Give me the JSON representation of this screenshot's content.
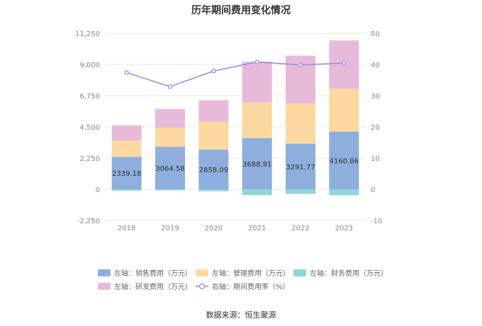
{
  "chart_data": {
    "type": "bar",
    "title": "历年期间费用变化情况",
    "categories": [
      "2018",
      "2019",
      "2020",
      "2021",
      "2022",
      "2023"
    ],
    "left_axis": {
      "ticks": [
        "11,250",
        "9,000",
        "6,750",
        "4,500",
        "2,250",
        "0",
        "-2,250"
      ],
      "ylim": [
        -2250,
        11250
      ]
    },
    "right_axis": {
      "ticks": [
        "50",
        "40",
        "30",
        "20",
        "10",
        "0",
        "-10"
      ],
      "ylim": [
        -10,
        50
      ]
    },
    "series": [
      {
        "name": "左轴：销售费用（万元）",
        "type": "bar",
        "stack": "pos",
        "color": "#8eaedd",
        "values": [
          2339.18,
          3064.58,
          2858.09,
          3688.91,
          3291.77,
          4160.86
        ],
        "labels": true
      },
      {
        "name": "左轴：管理费用（万元）",
        "type": "bar",
        "stack": "pos",
        "color": "#fcd9a0",
        "values": [
          1170,
          1380,
          2010,
          2560,
          2900,
          3080
        ]
      },
      {
        "name": "左轴：财务费用（万元）",
        "type": "bar",
        "stack": "neg",
        "color": "#8ed6d8",
        "values": [
          -110,
          -80,
          -150,
          -420,
          -330,
          -430
        ]
      },
      {
        "name": "左轴：研发费用（万元）",
        "type": "bar",
        "stack": "pos",
        "color": "#e8bada",
        "values": [
          1100,
          1350,
          1550,
          2950,
          3450,
          3490
        ]
      },
      {
        "name": "右轴：期间费用率（%）",
        "type": "line",
        "axis": "right",
        "color": "#8c8cf0",
        "values": [
          37.4,
          32.9,
          37.9,
          40.8,
          39.9,
          40.4
        ]
      }
    ],
    "legend": {
      "position": "bottom"
    },
    "grid": true
  },
  "source": "数据来源：恒生聚源"
}
